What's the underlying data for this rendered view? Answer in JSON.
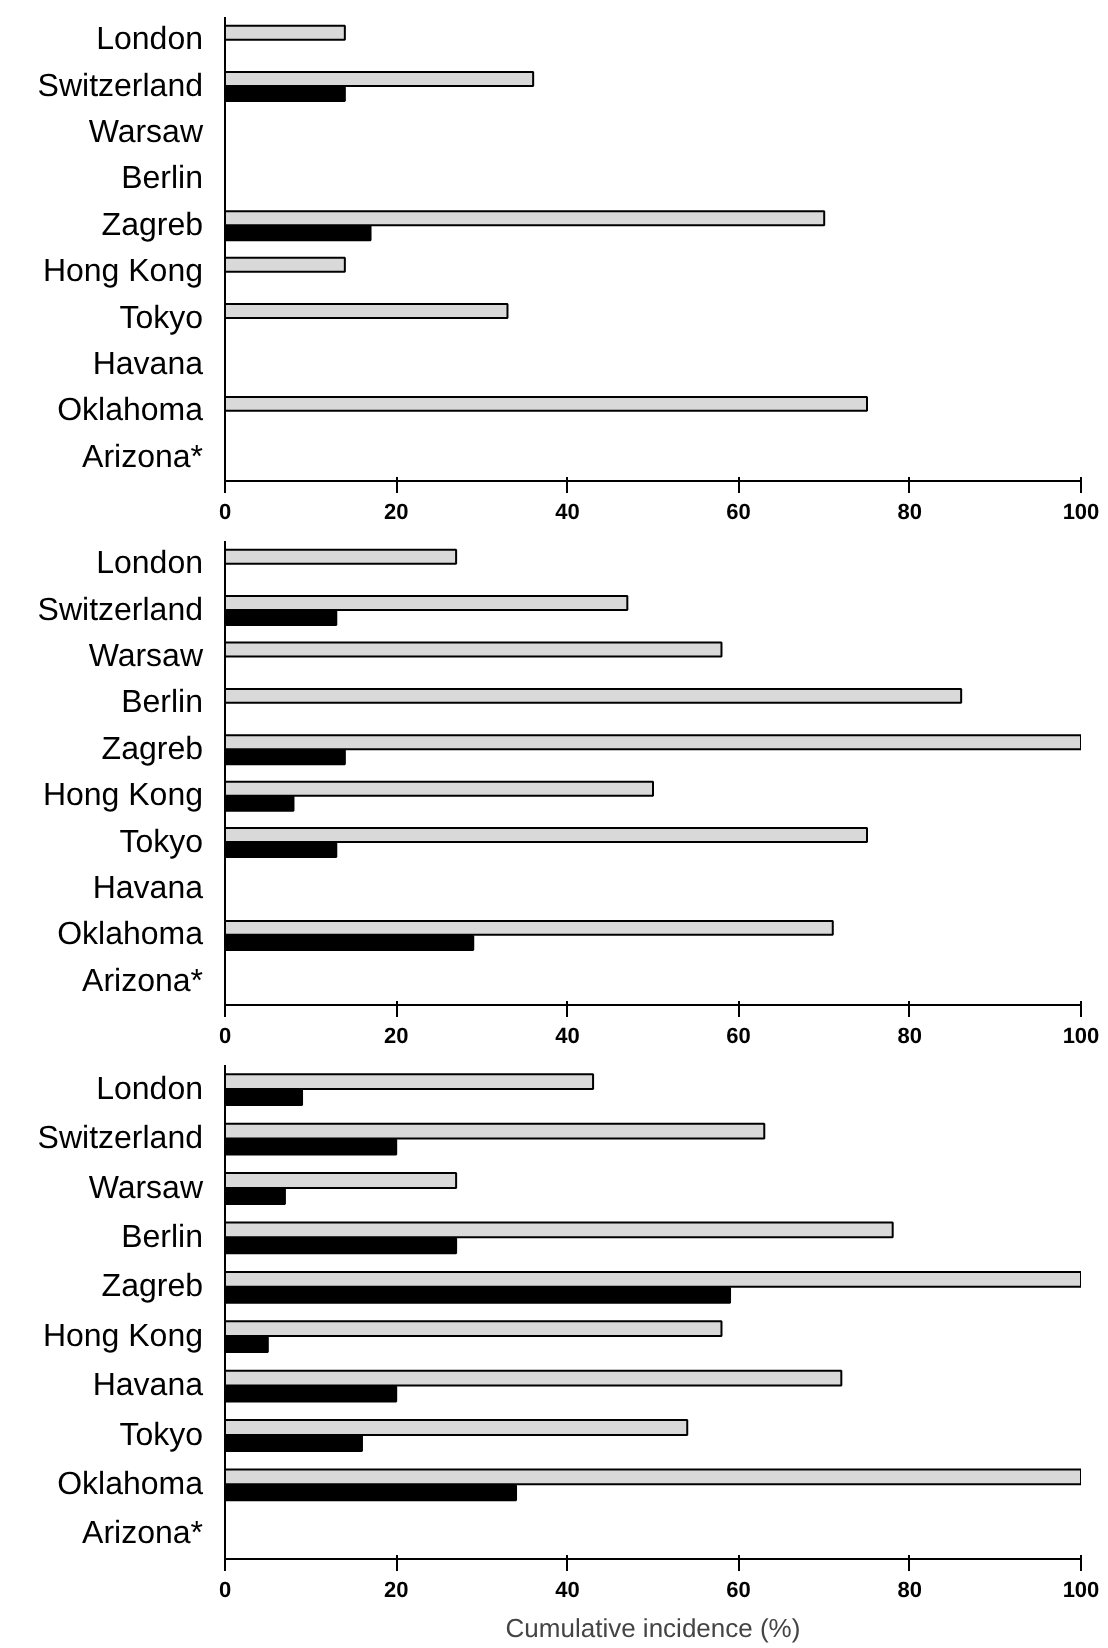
{
  "chart_data": [
    {
      "type": "bar",
      "orientation": "horizontal",
      "grid": false,
      "categories": [
        "London",
        "Switzerland",
        "Warsaw",
        "Berlin",
        "Zagreb",
        "Hong Kong",
        "Tokyo",
        "Havana",
        "Oklahoma",
        "Arizona*"
      ],
      "xlim": [
        0,
        100
      ],
      "xticks": [
        0,
        20,
        40,
        60,
        80,
        100
      ],
      "series": [
        {
          "color": "#d9d9d9",
          "values": [
            14,
            36,
            null,
            null,
            70,
            14,
            33,
            null,
            75,
            null
          ]
        },
        {
          "color": "#000000",
          "values": [
            null,
            14,
            null,
            null,
            17,
            null,
            null,
            null,
            null,
            null
          ]
        }
      ]
    },
    {
      "type": "bar",
      "orientation": "horizontal",
      "grid": false,
      "categories": [
        "London",
        "Switzerland",
        "Warsaw",
        "Berlin",
        "Zagreb",
        "Hong Kong",
        "Tokyo",
        "Havana",
        "Oklahoma",
        "Arizona*"
      ],
      "xlim": [
        0,
        100
      ],
      "xticks": [
        0,
        20,
        40,
        60,
        80,
        100
      ],
      "series": [
        {
          "color": "#d9d9d9",
          "values": [
            27,
            47,
            58,
            86,
            100,
            50,
            75,
            null,
            71,
            null
          ]
        },
        {
          "color": "#000000",
          "values": [
            null,
            13,
            null,
            null,
            14,
            8,
            13,
            null,
            29,
            null
          ]
        }
      ]
    },
    {
      "type": "bar",
      "orientation": "horizontal",
      "grid": false,
      "xlabel": "Cumulative incidence (%)",
      "categories": [
        "London",
        "Switzerland",
        "Warsaw",
        "Berlin",
        "Zagreb",
        "Hong Kong",
        "Havana",
        "Tokyo",
        "Oklahoma",
        "Arizona*"
      ],
      "xlim": [
        0,
        100
      ],
      "xticks": [
        0,
        20,
        40,
        60,
        80,
        100
      ],
      "series": [
        {
          "color": "#d9d9d9",
          "values": [
            43,
            63,
            27,
            78,
            100,
            58,
            72,
            54,
            100,
            null
          ]
        },
        {
          "color": "#000000",
          "values": [
            9,
            20,
            7,
            27,
            59,
            5,
            20,
            16,
            34,
            null
          ]
        }
      ]
    }
  ]
}
